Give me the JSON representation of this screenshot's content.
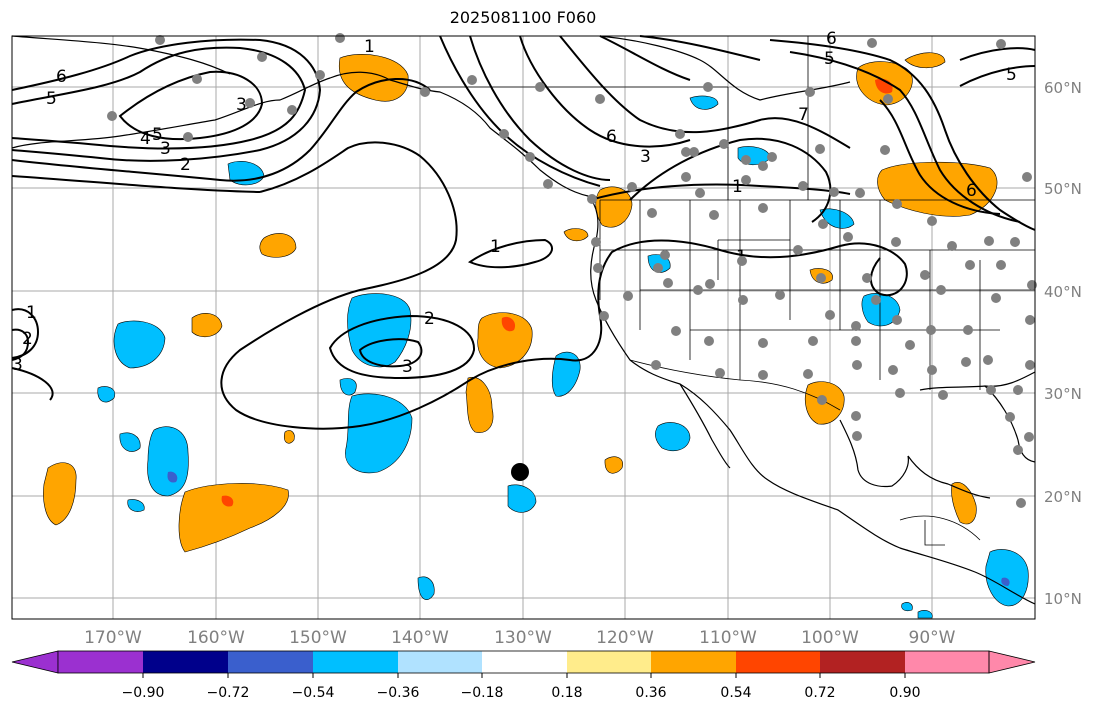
{
  "title": "2025081100 F060",
  "map": {
    "lon_ticks": [
      "170°W",
      "160°W",
      "150°W",
      "140°W",
      "130°W",
      "120°W",
      "110°W",
      "100°W",
      "90°W"
    ],
    "lat_ticks": [
      "60°N",
      "50°N",
      "40°N",
      "30°N",
      "20°N",
      "10°N"
    ],
    "contour_labels": [
      "6",
      "5",
      "4",
      "5",
      "3",
      "2",
      "1",
      "1",
      "2",
      "3",
      "6",
      "3",
      "1",
      "1",
      "6",
      "5",
      "6",
      "5",
      "7",
      "3",
      "2",
      "3",
      "1"
    ],
    "grid": true,
    "station_marker": "filled-black-circle"
  },
  "colorbar": {
    "ticks": [
      "−0.90",
      "−0.72",
      "−0.54",
      "−0.36",
      "−0.18",
      "0.18",
      "0.36",
      "0.54",
      "0.72",
      "0.90"
    ],
    "colors": [
      "#9b30d0",
      "#00008b",
      "#3a5fcd",
      "#00bfff",
      "#b0e2ff",
      "#ffffff",
      "#ffec8b",
      "#ffa500",
      "#ff4500",
      "#b22222",
      "#ff88aa"
    ]
  }
}
